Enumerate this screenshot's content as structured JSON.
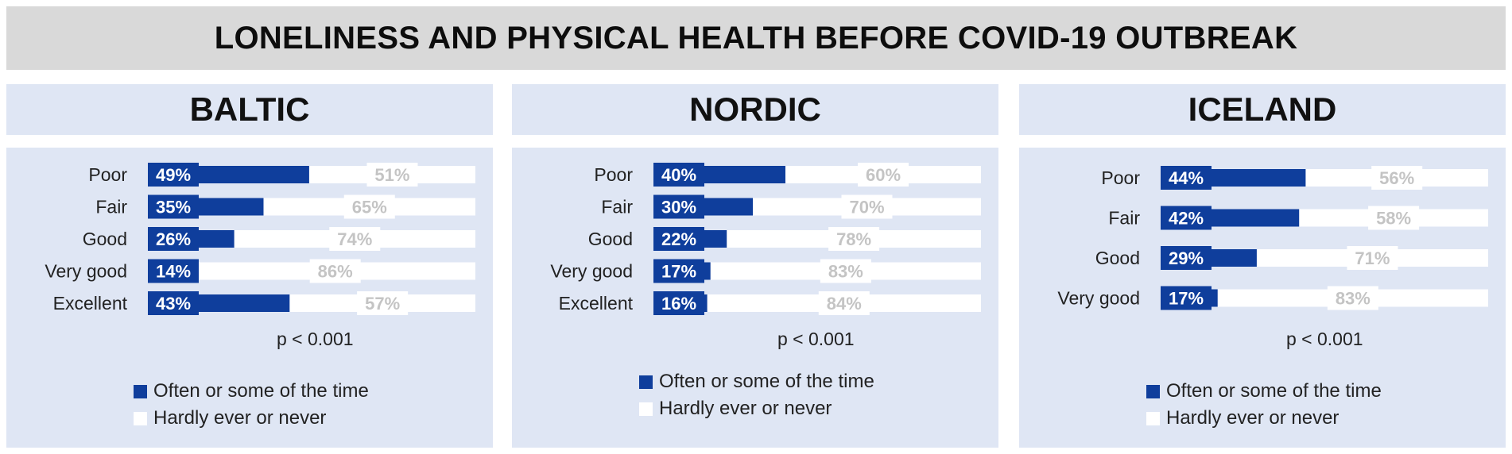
{
  "title": "LONELINESS AND PHYSICAL HEALTH BEFORE COVID-19 OUTBREAK",
  "colors": {
    "often": "#0f3e9c",
    "never": "#ffffff",
    "panel": "#dfe6f4",
    "never_label": "#c4c4c4"
  },
  "legend": [
    "Often or some of the time",
    "Hardly ever or never"
  ],
  "chart_data": [
    {
      "type": "bar",
      "title": "BALTIC",
      "stacked": true,
      "orientation": "horizontal",
      "categories": [
        "Poor",
        "Fair",
        "Good",
        "Very good",
        "Excellent"
      ],
      "series": [
        {
          "name": "Often or some of the time",
          "values": [
            49,
            35,
            26,
            14,
            43
          ],
          "labels": [
            "49%",
            "35%",
            "26%",
            "14%",
            "43%"
          ]
        },
        {
          "name": "Hardly ever or never",
          "values": [
            51,
            65,
            74,
            86,
            57
          ],
          "labels": [
            "51%",
            "65%",
            "74%",
            "86%",
            "57%"
          ]
        }
      ],
      "annotation": "p < 0.001",
      "xlim": [
        0,
        100
      ]
    },
    {
      "type": "bar",
      "title": "NORDIC",
      "stacked": true,
      "orientation": "horizontal",
      "categories": [
        "Poor",
        "Fair",
        "Good",
        "Very good",
        "Excellent"
      ],
      "series": [
        {
          "name": "Often or some of the time",
          "values": [
            40,
            30,
            22,
            17,
            16
          ],
          "labels": [
            "40%",
            "30%",
            "22%",
            "17%",
            "16%"
          ]
        },
        {
          "name": "Hardly ever or never",
          "values": [
            60,
            70,
            78,
            83,
            84
          ],
          "labels": [
            "60%",
            "70%",
            "78%",
            "83%",
            "84%"
          ]
        }
      ],
      "annotation": "p < 0.001",
      "xlim": [
        0,
        100
      ]
    },
    {
      "type": "bar",
      "title": "ICELAND",
      "stacked": true,
      "orientation": "horizontal",
      "categories": [
        "Poor",
        "Fair",
        "Good",
        "Very good"
      ],
      "series": [
        {
          "name": "Often or some of the time",
          "values": [
            44,
            42,
            29,
            17
          ],
          "labels": [
            "44%",
            "42%",
            "29%",
            "17%"
          ]
        },
        {
          "name": "Hardly ever or never",
          "values": [
            56,
            58,
            71,
            83
          ],
          "labels": [
            "56%",
            "58%",
            "71%",
            "83%"
          ]
        }
      ],
      "annotation": "p < 0.001",
      "xlim": [
        0,
        100
      ]
    }
  ]
}
